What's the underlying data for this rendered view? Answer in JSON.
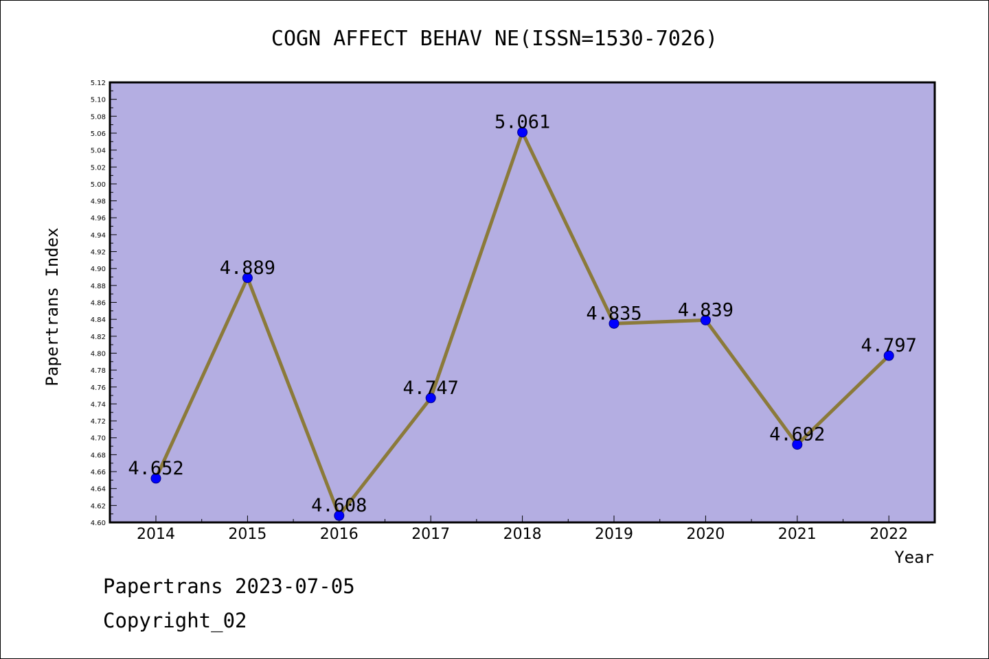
{
  "chart_data": {
    "type": "line",
    "title": "COGN AFFECT BEHAV NE(ISSN=1530-7026)",
    "xlabel": "Year",
    "ylabel": "Papertrans Index",
    "categories": [
      "2014",
      "2015",
      "2016",
      "2017",
      "2018",
      "2019",
      "2020",
      "2021",
      "2022"
    ],
    "series": [
      {
        "values": [
          4.652,
          4.889,
          4.608,
          4.747,
          5.061,
          4.835,
          4.839,
          4.692,
          4.797
        ],
        "labels": [
          "4.652",
          "4.889",
          "4.608",
          "4.747",
          "5.061",
          "4.835",
          "4.839",
          "4.692",
          "4.797"
        ]
      }
    ],
    "ylim": [
      4.6,
      5.12
    ],
    "ytick_step": 0.02,
    "grid": false,
    "colors": {
      "plot_background": "#b4aee2",
      "line": "#8b7a3a",
      "marker": "#0000ff"
    }
  },
  "footer": {
    "line1": "Papertrans 2023-07-05",
    "line2": "Copyright_02"
  }
}
